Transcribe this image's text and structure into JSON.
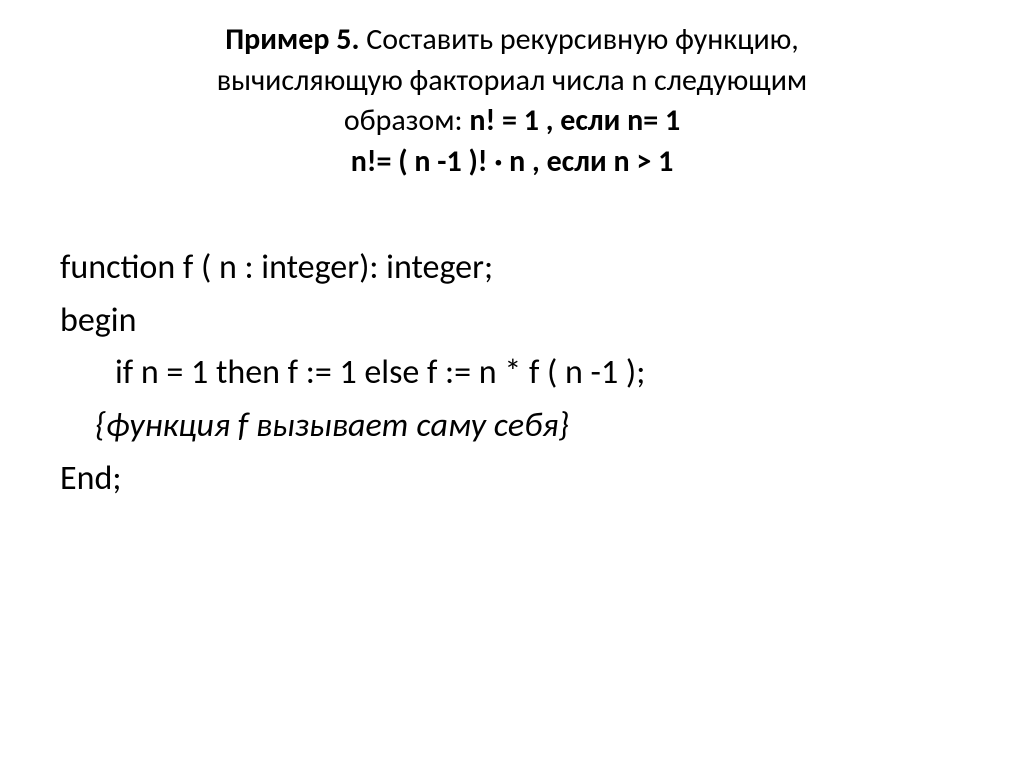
{
  "title": {
    "t1_bold": "Пример 5.",
    "t1_rest": " Составить рекурсивную функцию,",
    "t2": "вычисляющую факториал числа n следующим",
    "t3_a": "образом:    ",
    "t3_b": "n! = 1   , если   n= 1",
    "t4": "n!= ( n -1 )! · n ,  если  n > 1"
  },
  "body": {
    "l1": "function   f ( n : integer): integer;",
    "l2": "begin",
    "l3": "if  n = 1 then  f := 1  else f := n * f ( n -1 );",
    "l4": "{функция f вызывает саму себя}",
    "l5": "End;"
  },
  "colors": {
    "background": "#ffffff",
    "text": "#000000"
  },
  "fontsize": {
    "title": 30,
    "body": 34
  }
}
